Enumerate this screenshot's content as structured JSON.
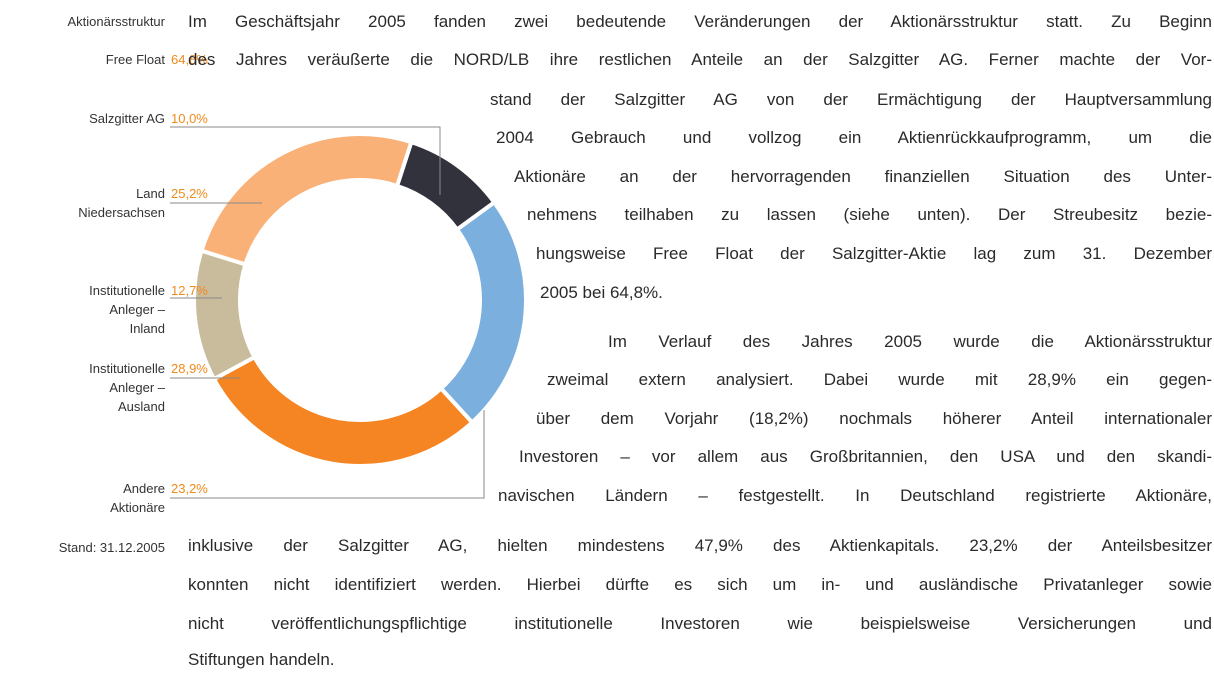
{
  "chart_data": {
    "type": "pie",
    "title": "Aktionärsstruktur",
    "categories": [
      "Salzgitter AG",
      "Land\nNiedersachsen",
      "Institutionelle\nAnleger –\nInland",
      "Institutionelle\nAnleger –\nAusland",
      "Andere\nAktionäre"
    ],
    "values": [
      10.0,
      25.2,
      12.7,
      28.9,
      23.2
    ],
    "value_labels": [
      "10,0%",
      "25,2%",
      "12,7%",
      "28,9%",
      "23,2%"
    ],
    "colors": [
      "#31323c",
      "#f9b177",
      "#c8bc9d",
      "#f58423",
      "#7bafde"
    ],
    "note": "Stand: 31.12.2005"
  },
  "summary": {
    "label": "Free Float",
    "value": "64,8%"
  },
  "text": {
    "paragraphs": [
      [
        "Im Geschäftsjahr 2005 fanden zwei bedeutende Veränderungen der Aktionärsstruktur statt. Zu Beginn",
        "des Jahres veräußerte die NORD/LB ihre restlichen Anteile an der Salzgitter AG. Ferner machte der Vor-",
        "stand der Salzgitter AG von der Ermächtigung der Hauptversammlung",
        "2004 Gebrauch und vollzog ein Aktienrückkaufprogramm, um die",
        "Aktionäre an der hervorragenden finanziellen Situation des Unter-",
        "nehmens teilhaben zu lassen (siehe unten). Der Streubesitz bezie-",
        "hungsweise Free Float der Salzgitter-Aktie lag zum 31. Dezember",
        "2005 bei 64,8%."
      ],
      [
        "Im Verlauf des Jahres 2005 wurde die Aktionärsstruktur",
        "zweimal extern analysiert. Dabei wurde mit 28,9% ein gegen-",
        "über dem Vorjahr (18,2%) nochmals höherer Anteil internationaler",
        "Investoren – vor allem aus Großbritannien, den USA und den skandi-",
        "navischen Ländern – festgestellt. In Deutschland registrierte Aktionäre,",
        "inklusive der Salzgitter AG, hielten mindestens 47,9% des Aktienkapitals. 23,2% der Anteilsbesitzer",
        "konnten nicht identifiziert werden. Hierbei dürfte es sich um in- und ausländische Privatanleger sowie",
        "nicht veröffentlichungspflichtige institutionelle Investoren wie beispielsweise Versicherungen und",
        "Stiftungen handeln."
      ]
    ]
  }
}
